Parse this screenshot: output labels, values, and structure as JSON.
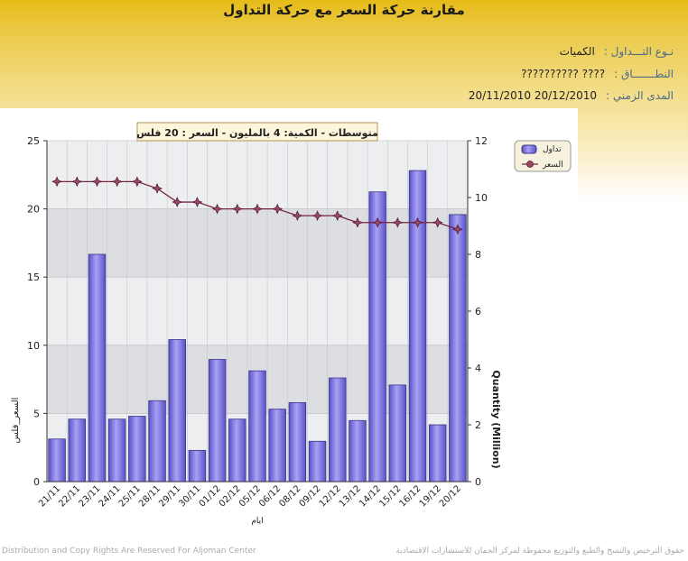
{
  "page": {
    "title": "مقارنة حركة السعر مع حركة التداول",
    "info": [
      {
        "label": "نـوع التـــداول :",
        "value": "الكميات"
      },
      {
        "label": "النطـــــــاق :",
        "value": "????      ??????????"
      },
      {
        "label": "المدى الزمني :",
        "value": "20/11/2010 20/12/2010"
      }
    ]
  },
  "footer": {
    "left": "Distribution and Copy Rights Are Reserved For Aljoman Center",
    "right": "حقوق الترخيص والنسخ والطبع والتوزيع محفوظة لمركز الجمان للاستشارات الاقتصادية"
  },
  "colors": {
    "bar_fill": "#7b74e0",
    "bar_stroke": "#3a3488",
    "line": "#7a2440",
    "marker": "#9b4868",
    "header_top": "#e6bc18"
  },
  "chart_data": {
    "type": "bar",
    "title": "متوسطات - الكمية: 4 بالمليون  - السعر : 20 فلس",
    "xlabel": "ايام",
    "ylabel_left": "السعر_فلس",
    "ylabel_right": "Quantity (Million)",
    "categories": [
      "21/11",
      "22/11",
      "23/11",
      "24/11",
      "25/11",
      "28/11",
      "29/11",
      "30/11",
      "01/12",
      "02/12",
      "05/12",
      "06/12",
      "08/12",
      "09/12",
      "12/12",
      "13/12",
      "14/12",
      "15/12",
      "16/12",
      "19/12",
      "20/12"
    ],
    "left_axis": {
      "min": 0,
      "max": 25,
      "ticks": [
        0,
        5,
        10,
        15,
        20,
        25
      ]
    },
    "right_axis": {
      "min": 0,
      "max": 12,
      "ticks": [
        0,
        2,
        4,
        6,
        8,
        10,
        12
      ]
    },
    "grid": true,
    "legend_position": "top-right",
    "series": [
      {
        "name": "تداول",
        "type": "bar",
        "axis": "right",
        "values": [
          1.5,
          2.2,
          8.0,
          2.2,
          2.3,
          2.85,
          5.0,
          1.1,
          4.3,
          2.2,
          3.9,
          2.55,
          2.78,
          1.42,
          3.65,
          2.15,
          10.2,
          3.4,
          10.95,
          2.0,
          9.4
        ]
      },
      {
        "name": "السعر",
        "type": "line",
        "axis": "left",
        "values": [
          22,
          22,
          22,
          22,
          22,
          21.5,
          20.5,
          20.5,
          20,
          20,
          20,
          20,
          19.5,
          19.5,
          19.5,
          19,
          19,
          19,
          19,
          19,
          18.5
        ]
      }
    ]
  }
}
